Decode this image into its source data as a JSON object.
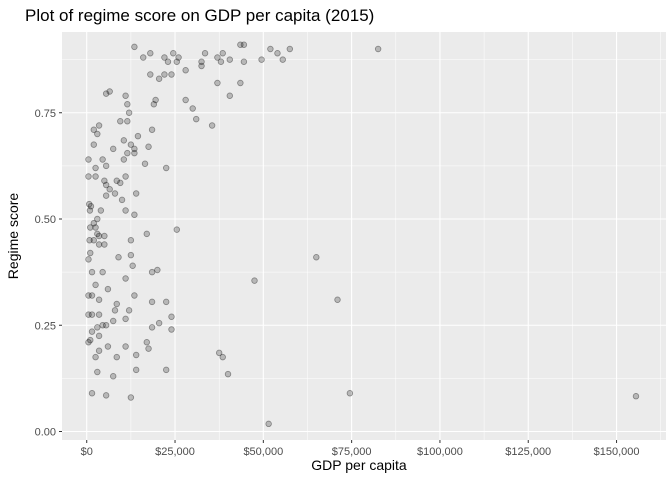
{
  "chart_data": {
    "type": "scatter",
    "title": "Plot of regime score on GDP per capita (2015)",
    "xlabel": "GDP per capita",
    "ylabel": "Regime score",
    "xlim": [
      -7000,
      164000
    ],
    "ylim": [
      -0.02,
      0.94
    ],
    "x_ticks": [
      0,
      25000,
      50000,
      75000,
      100000,
      125000,
      150000
    ],
    "x_tick_labels": [
      "$0",
      "$25,000",
      "$50,000",
      "$75,000",
      "$100,000",
      "$125,000",
      "$150,000"
    ],
    "y_ticks": [
      0,
      0.25,
      0.5,
      0.75
    ],
    "y_tick_labels": [
      "0.00",
      "0.25",
      "0.50",
      "0.75"
    ],
    "grid": true,
    "colors": {
      "panel": "#ebebeb",
      "grid": "#ffffff",
      "point": "#000000"
    },
    "points": [
      [
        13500,
        0.905
      ],
      [
        26000,
        0.88
      ],
      [
        22000,
        0.88
      ],
      [
        24500,
        0.89
      ],
      [
        25500,
        0.87
      ],
      [
        23000,
        0.87
      ],
      [
        18000,
        0.89
      ],
      [
        16000,
        0.88
      ],
      [
        33500,
        0.89
      ],
      [
        37000,
        0.88
      ],
      [
        38500,
        0.89
      ],
      [
        43500,
        0.91
      ],
      [
        44500,
        0.91
      ],
      [
        52000,
        0.9
      ],
      [
        54000,
        0.89
      ],
      [
        57500,
        0.9
      ],
      [
        55500,
        0.875
      ],
      [
        49500,
        0.875
      ],
      [
        44500,
        0.87
      ],
      [
        40500,
        0.875
      ],
      [
        38000,
        0.87
      ],
      [
        32500,
        0.87
      ],
      [
        32500,
        0.86
      ],
      [
        28000,
        0.85
      ],
      [
        24000,
        0.84
      ],
      [
        22000,
        0.84
      ],
      [
        18000,
        0.84
      ],
      [
        20500,
        0.83
      ],
      [
        37000,
        0.82
      ],
      [
        43500,
        0.82
      ],
      [
        82500,
        0.9
      ],
      [
        40500,
        0.79
      ],
      [
        19500,
        0.78
      ],
      [
        19000,
        0.77
      ],
      [
        28000,
        0.78
      ],
      [
        30000,
        0.76
      ],
      [
        31000,
        0.735
      ],
      [
        35500,
        0.72
      ],
      [
        11000,
        0.79
      ],
      [
        11500,
        0.77
      ],
      [
        12000,
        0.75
      ],
      [
        6500,
        0.8
      ],
      [
        5500,
        0.795
      ],
      [
        9500,
        0.73
      ],
      [
        3500,
        0.72
      ],
      [
        2000,
        0.71
      ],
      [
        3000,
        0.7
      ],
      [
        11500,
        0.73
      ],
      [
        14500,
        0.695
      ],
      [
        18500,
        0.71
      ],
      [
        10500,
        0.685
      ],
      [
        12500,
        0.675
      ],
      [
        13500,
        0.665
      ],
      [
        17500,
        0.67
      ],
      [
        7500,
        0.665
      ],
      [
        2000,
        0.675
      ],
      [
        500,
        0.64
      ],
      [
        4500,
        0.64
      ],
      [
        10500,
        0.64
      ],
      [
        11500,
        0.655
      ],
      [
        13500,
        0.655
      ],
      [
        16500,
        0.63
      ],
      [
        22500,
        0.62
      ],
      [
        2500,
        0.62
      ],
      [
        5500,
        0.625
      ],
      [
        500,
        0.6
      ],
      [
        2500,
        0.6
      ],
      [
        5000,
        0.59
      ],
      [
        5500,
        0.58
      ],
      [
        8500,
        0.59
      ],
      [
        9500,
        0.585
      ],
      [
        6500,
        0.57
      ],
      [
        8000,
        0.56
      ],
      [
        11000,
        0.6
      ],
      [
        14000,
        0.56
      ],
      [
        10000,
        0.545
      ],
      [
        5500,
        0.555
      ],
      [
        700,
        0.535
      ],
      [
        900,
        0.52
      ],
      [
        1200,
        0.53
      ],
      [
        4000,
        0.52
      ],
      [
        13500,
        0.51
      ],
      [
        11000,
        0.52
      ],
      [
        3000,
        0.5
      ],
      [
        2000,
        0.49
      ],
      [
        1000,
        0.48
      ],
      [
        2500,
        0.48
      ],
      [
        25500,
        0.475
      ],
      [
        17000,
        0.465
      ],
      [
        3000,
        0.465
      ],
      [
        3500,
        0.46
      ],
      [
        5000,
        0.46
      ],
      [
        800,
        0.45
      ],
      [
        2000,
        0.45
      ],
      [
        3500,
        0.44
      ],
      [
        5000,
        0.44
      ],
      [
        12500,
        0.45
      ],
      [
        9000,
        0.41
      ],
      [
        12500,
        0.415
      ],
      [
        13000,
        0.39
      ],
      [
        65000,
        0.41
      ],
      [
        500,
        0.405
      ],
      [
        1000,
        0.42
      ],
      [
        1500,
        0.375
      ],
      [
        4500,
        0.375
      ],
      [
        11000,
        0.36
      ],
      [
        20000,
        0.38
      ],
      [
        18500,
        0.375
      ],
      [
        13500,
        0.32
      ],
      [
        47500,
        0.355
      ],
      [
        2500,
        0.345
      ],
      [
        6000,
        0.335
      ],
      [
        3500,
        0.31
      ],
      [
        8500,
        0.3
      ],
      [
        8000,
        0.285
      ],
      [
        12000,
        0.285
      ],
      [
        18500,
        0.305
      ],
      [
        22500,
        0.305
      ],
      [
        24000,
        0.27
      ],
      [
        71000,
        0.31
      ],
      [
        500,
        0.32
      ],
      [
        1500,
        0.32
      ],
      [
        1500,
        0.275
      ],
      [
        3500,
        0.275
      ],
      [
        500,
        0.275
      ],
      [
        7500,
        0.26
      ],
      [
        11000,
        0.265
      ],
      [
        4500,
        0.25
      ],
      [
        5500,
        0.25
      ],
      [
        3000,
        0.245
      ],
      [
        18500,
        0.245
      ],
      [
        20500,
        0.255
      ],
      [
        24000,
        0.24
      ],
      [
        1500,
        0.235
      ],
      [
        3500,
        0.225
      ],
      [
        1000,
        0.215
      ],
      [
        500,
        0.21
      ],
      [
        6000,
        0.2
      ],
      [
        11000,
        0.2
      ],
      [
        17000,
        0.21
      ],
      [
        17500,
        0.195
      ],
      [
        14000,
        0.18
      ],
      [
        8500,
        0.175
      ],
      [
        3500,
        0.19
      ],
      [
        2500,
        0.175
      ],
      [
        37500,
        0.185
      ],
      [
        38500,
        0.175
      ],
      [
        40000,
        0.135
      ],
      [
        22500,
        0.145
      ],
      [
        14000,
        0.145
      ],
      [
        7500,
        0.13
      ],
      [
        3000,
        0.14
      ],
      [
        1500,
        0.09
      ],
      [
        5500,
        0.085
      ],
      [
        12500,
        0.08
      ],
      [
        74500,
        0.09
      ],
      [
        155500,
        0.083
      ],
      [
        51500,
        0.018
      ]
    ]
  }
}
